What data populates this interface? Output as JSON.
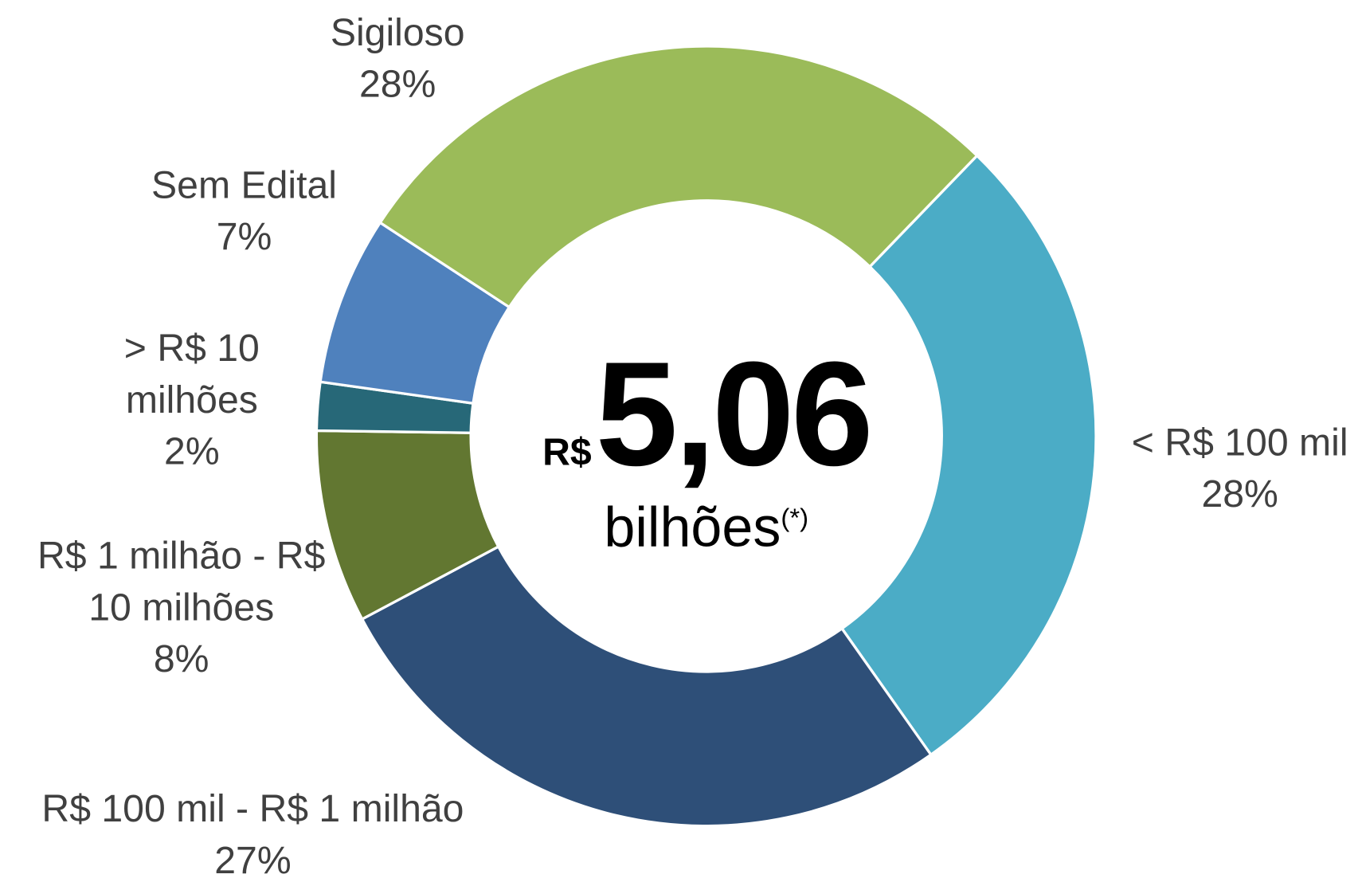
{
  "chart_data": {
    "type": "donut",
    "categories": [
      "< R$ 100 mil",
      "R$ 100 mil - R$ 1 milhão",
      "R$ 1 milhão - R$ 10 milhões",
      "> R$ 10 milhões",
      "Sem Edital",
      "Sigiloso"
    ],
    "values": [
      28,
      27,
      8,
      2,
      7,
      28
    ],
    "value_labels": [
      "28%",
      "27%",
      "8%",
      "2%",
      "7%",
      "28%"
    ],
    "colors": [
      "#4BACC6",
      "#2E4F78",
      "#627731",
      "#276878",
      "#4F81BD",
      "#9BBB59"
    ],
    "center_prefix": "R$",
    "center_value": "5,06",
    "center_unit": "bilhões",
    "center_note": "(*)"
  }
}
